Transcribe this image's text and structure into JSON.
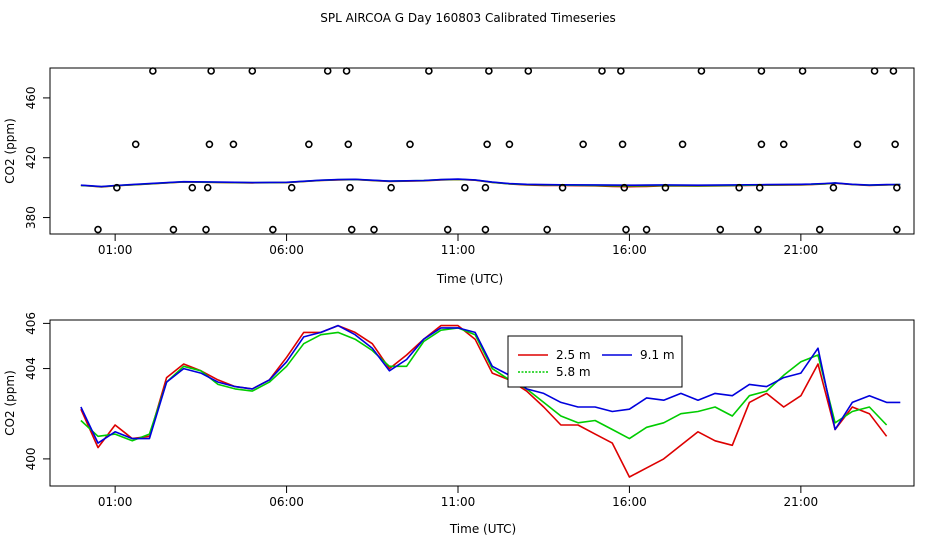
{
  "title": "SPL AIRCOA G  Day 160803  Calibrated Timeseries",
  "colors": {
    "r25": "#dd0000",
    "g58": "#00cc00",
    "b91": "#0000dd"
  },
  "chart_data": [
    {
      "type": "line",
      "xlabel": "Time (UTC)",
      "ylabel": "CO2 (ppm)",
      "xlim": [
        -0.9,
        24.3
      ],
      "ylim": [
        369,
        480
      ],
      "xticks": [
        1,
        6,
        11,
        16,
        21
      ],
      "xtick_labels": [
        "01:00",
        "06:00",
        "11:00",
        "16:00",
        "21:00"
      ],
      "yticks": [
        380,
        420,
        460
      ],
      "ytick_labels": [
        "380",
        "420",
        "460"
      ],
      "circles": {
        "high": [
          {
            "x": 2.1,
            "y": 478
          },
          {
            "x": 3.8,
            "y": 478
          },
          {
            "x": 5.0,
            "y": 478
          },
          {
            "x": 7.2,
            "y": 478
          },
          {
            "x": 7.75,
            "y": 478
          },
          {
            "x": 10.15,
            "y": 478
          },
          {
            "x": 11.9,
            "y": 478
          },
          {
            "x": 13.05,
            "y": 478
          },
          {
            "x": 15.2,
            "y": 478
          },
          {
            "x": 15.75,
            "y": 478
          },
          {
            "x": 18.1,
            "y": 478
          },
          {
            "x": 19.85,
            "y": 478
          },
          {
            "x": 21.05,
            "y": 478
          },
          {
            "x": 23.15,
            "y": 478
          },
          {
            "x": 23.7,
            "y": 478
          }
        ],
        "mid": [
          {
            "x": 1.6,
            "y": 429
          },
          {
            "x": 3.75,
            "y": 429
          },
          {
            "x": 4.45,
            "y": 429
          },
          {
            "x": 6.65,
            "y": 429
          },
          {
            "x": 7.8,
            "y": 429
          },
          {
            "x": 9.6,
            "y": 429
          },
          {
            "x": 11.85,
            "y": 429
          },
          {
            "x": 12.5,
            "y": 429
          },
          {
            "x": 14.65,
            "y": 429
          },
          {
            "x": 15.8,
            "y": 429
          },
          {
            "x": 17.55,
            "y": 429
          },
          {
            "x": 19.85,
            "y": 429
          },
          {
            "x": 20.5,
            "y": 429
          },
          {
            "x": 22.65,
            "y": 429
          },
          {
            "x": 23.75,
            "y": 429
          }
        ],
        "center": [
          {
            "x": 1.05,
            "y": 400
          },
          {
            "x": 3.25,
            "y": 400
          },
          {
            "x": 3.7,
            "y": 400
          },
          {
            "x": 6.15,
            "y": 400
          },
          {
            "x": 7.85,
            "y": 400
          },
          {
            "x": 9.05,
            "y": 400
          },
          {
            "x": 11.2,
            "y": 400
          },
          {
            "x": 11.8,
            "y": 400
          },
          {
            "x": 14.05,
            "y": 400
          },
          {
            "x": 15.85,
            "y": 400
          },
          {
            "x": 17.05,
            "y": 400
          },
          {
            "x": 19.2,
            "y": 400
          },
          {
            "x": 19.8,
            "y": 400
          },
          {
            "x": 21.95,
            "y": 400
          },
          {
            "x": 23.8,
            "y": 400
          }
        ],
        "low": [
          {
            "x": 0.5,
            "y": 372
          },
          {
            "x": 2.7,
            "y": 372
          },
          {
            "x": 3.65,
            "y": 372
          },
          {
            "x": 5.6,
            "y": 372
          },
          {
            "x": 7.9,
            "y": 372
          },
          {
            "x": 8.55,
            "y": 372
          },
          {
            "x": 10.7,
            "y": 372
          },
          {
            "x": 11.8,
            "y": 372
          },
          {
            "x": 13.6,
            "y": 372
          },
          {
            "x": 15.9,
            "y": 372
          },
          {
            "x": 16.5,
            "y": 372
          },
          {
            "x": 18.65,
            "y": 372
          },
          {
            "x": 19.75,
            "y": 372
          },
          {
            "x": 21.55,
            "y": 372
          },
          {
            "x": 23.8,
            "y": 372
          }
        ]
      },
      "series": [
        {
          "name": "2.5 m",
          "color": "#dd0000",
          "x": [
            0,
            0.3,
            0.6,
            1,
            2,
            3,
            4,
            5,
            6,
            7,
            7.5,
            8,
            9,
            10,
            10.5,
            11,
            11.5,
            12,
            12.5,
            13,
            13.5,
            14,
            15,
            15.5,
            16,
            16.5,
            17,
            18,
            19,
            20,
            21,
            21.3,
            21.7,
            22,
            22.5,
            23,
            23.5,
            23.9
          ],
          "y": [
            401.5,
            401,
            400.5,
            401.2,
            402.5,
            403.8,
            403.5,
            403.2,
            403.4,
            404.8,
            405.2,
            405.4,
            404.2,
            404.6,
            405.2,
            405.5,
            405,
            403.5,
            402.5,
            401.8,
            401.5,
            401.4,
            401.2,
            400.8,
            400.6,
            400.8,
            401.2,
            401,
            401.3,
            401.6,
            401.8,
            402,
            402.5,
            403,
            402,
            401.5,
            401.8,
            401.9
          ]
        },
        {
          "name": "5.8 m",
          "color": "#00cc00",
          "x": [
            0,
            0.3,
            0.6,
            1,
            2,
            3,
            4,
            5,
            6,
            7,
            7.5,
            8,
            9,
            10,
            10.5,
            11,
            11.5,
            12,
            12.5,
            13,
            13.5,
            14,
            15,
            15.5,
            16,
            16.5,
            17,
            18,
            19,
            20,
            21,
            21.3,
            21.7,
            22,
            22.5,
            23,
            23.5,
            23.9
          ],
          "y": [
            401.5,
            401.1,
            400.6,
            401.3,
            402.6,
            403.9,
            403.6,
            403.3,
            403.5,
            404.9,
            405.3,
            405.5,
            404.3,
            404.7,
            405.3,
            405.6,
            405.1,
            403.6,
            402.6,
            402,
            401.8,
            401.7,
            401.5,
            401.3,
            401.2,
            401.3,
            401.5,
            401.3,
            401.5,
            401.8,
            402,
            402.2,
            402.6,
            403.1,
            402.1,
            401.6,
            401.9,
            402
          ]
        },
        {
          "name": "9.1 m",
          "color": "#0000dd",
          "x": [
            0,
            0.3,
            0.6,
            1,
            2,
            3,
            4,
            5,
            6,
            7,
            7.5,
            8,
            9,
            10,
            10.5,
            11,
            11.5,
            12,
            12.5,
            13,
            13.5,
            14,
            15,
            15.5,
            16,
            16.5,
            17,
            18,
            19,
            20,
            21,
            21.3,
            21.7,
            22,
            22.5,
            23,
            23.5,
            23.9
          ],
          "y": [
            401.6,
            401.2,
            400.7,
            401.4,
            402.7,
            404,
            403.7,
            403.4,
            403.6,
            405,
            405.4,
            405.6,
            404.4,
            404.8,
            405.4,
            405.7,
            405.2,
            403.7,
            402.7,
            402.2,
            402,
            401.9,
            401.8,
            401.7,
            401.6,
            401.7,
            401.8,
            401.6,
            401.8,
            402,
            402.2,
            402.4,
            402.8,
            403.2,
            402.2,
            401.7,
            402,
            402.1
          ]
        }
      ]
    },
    {
      "type": "line",
      "xlabel": "Time (UTC)",
      "ylabel": "CO2 (ppm)",
      "xlim": [
        -0.9,
        24.3
      ],
      "ylim": [
        398.8,
        406.15
      ],
      "xticks": [
        1,
        6,
        11,
        16,
        21
      ],
      "xtick_labels": [
        "01:00",
        "06:00",
        "11:00",
        "16:00",
        "21:00"
      ],
      "yticks": [
        400,
        404,
        406
      ],
      "ytick_labels": [
        "400",
        "404",
        "406"
      ],
      "legend": [
        "2.5 m",
        "5.8 m",
        "9.1 m"
      ],
      "series": [
        {
          "name": "2.5 m",
          "color": "#dd0000",
          "x": [
            0,
            0.5,
            1,
            1.5,
            2,
            2.5,
            3,
            3.5,
            4,
            4.5,
            5,
            5.5,
            6,
            6.5,
            7,
            7.5,
            8,
            8.5,
            9,
            9.5,
            10,
            10.5,
            11,
            11.5,
            12,
            12.5,
            13,
            13.5,
            14,
            14.5,
            15,
            15.5,
            16,
            16.5,
            17,
            17.5,
            18,
            18.5,
            19,
            19.5,
            20,
            20.5,
            21,
            21.5,
            22,
            22.5,
            23,
            23.5
          ],
          "y": [
            402.2,
            400.5,
            401.5,
            400.9,
            401,
            403.6,
            404.2,
            403.9,
            403.5,
            403.2,
            403.1,
            403.5,
            404.5,
            405.6,
            405.6,
            405.9,
            405.6,
            405.1,
            404,
            404.6,
            405.3,
            405.9,
            405.9,
            405.3,
            403.8,
            403.5,
            403,
            402.3,
            401.5,
            401.5,
            401.1,
            400.7,
            399.2,
            399.6,
            400,
            400.6,
            401.2,
            400.8,
            400.6,
            402.5,
            402.9,
            402.3,
            402.8,
            404.2,
            401.3,
            402.3,
            402,
            401
          ]
        },
        {
          "name": "5.8 m",
          "color": "#00cc00",
          "x": [
            0,
            0.5,
            1,
            1.5,
            2,
            2.5,
            3,
            3.5,
            4,
            4.5,
            5,
            5.5,
            6,
            6.5,
            7,
            7.5,
            8,
            8.5,
            9,
            9.5,
            10,
            10.5,
            11,
            11.5,
            12,
            12.5,
            13,
            13.5,
            14,
            14.5,
            15,
            15.5,
            16,
            16.5,
            17,
            17.5,
            18,
            18.5,
            19,
            19.5,
            20,
            20.5,
            21,
            21.5,
            22,
            22.5,
            23,
            23.5
          ],
          "y": [
            401.7,
            401,
            401.1,
            400.8,
            401.1,
            403.4,
            404.1,
            403.9,
            403.3,
            403.1,
            403,
            403.4,
            404.1,
            405.1,
            405.5,
            405.6,
            405.3,
            404.8,
            404.1,
            404.1,
            405.2,
            405.7,
            405.8,
            405.5,
            404,
            403.5,
            403.1,
            402.5,
            401.9,
            401.6,
            401.7,
            401.3,
            400.9,
            401.4,
            401.6,
            402,
            402.1,
            402.3,
            401.9,
            402.8,
            403,
            403.7,
            404.3,
            404.6,
            401.6,
            402.1,
            402.3,
            401.5
          ]
        },
        {
          "name": "9.1 m",
          "color": "#0000dd",
          "x": [
            0,
            0.5,
            1,
            1.5,
            2,
            2.5,
            3,
            3.5,
            4,
            4.5,
            5,
            5.5,
            6,
            6.5,
            7,
            7.5,
            8,
            8.5,
            9,
            9.5,
            10,
            10.5,
            11,
            11.5,
            12,
            12.5,
            13,
            13.5,
            14,
            14.5,
            15,
            15.5,
            16,
            16.5,
            17,
            17.5,
            18,
            18.5,
            19,
            19.5,
            20,
            20.5,
            21,
            21.5,
            22,
            22.5,
            23,
            23.5,
            23.9
          ],
          "y": [
            402.3,
            400.7,
            401.2,
            400.9,
            400.9,
            403.4,
            404,
            403.8,
            403.4,
            403.2,
            403.1,
            403.5,
            404.3,
            405.4,
            405.6,
            405.9,
            405.5,
            404.9,
            403.9,
            404.4,
            405.3,
            405.8,
            405.8,
            405.6,
            404.1,
            403.7,
            403.1,
            402.9,
            402.5,
            402.3,
            402.3,
            402.1,
            402.2,
            402.7,
            402.6,
            402.9,
            402.6,
            402.9,
            402.8,
            403.3,
            403.2,
            403.6,
            403.8,
            404.9,
            401.3,
            402.5,
            402.8,
            402.5,
            402.5
          ]
        }
      ]
    }
  ]
}
